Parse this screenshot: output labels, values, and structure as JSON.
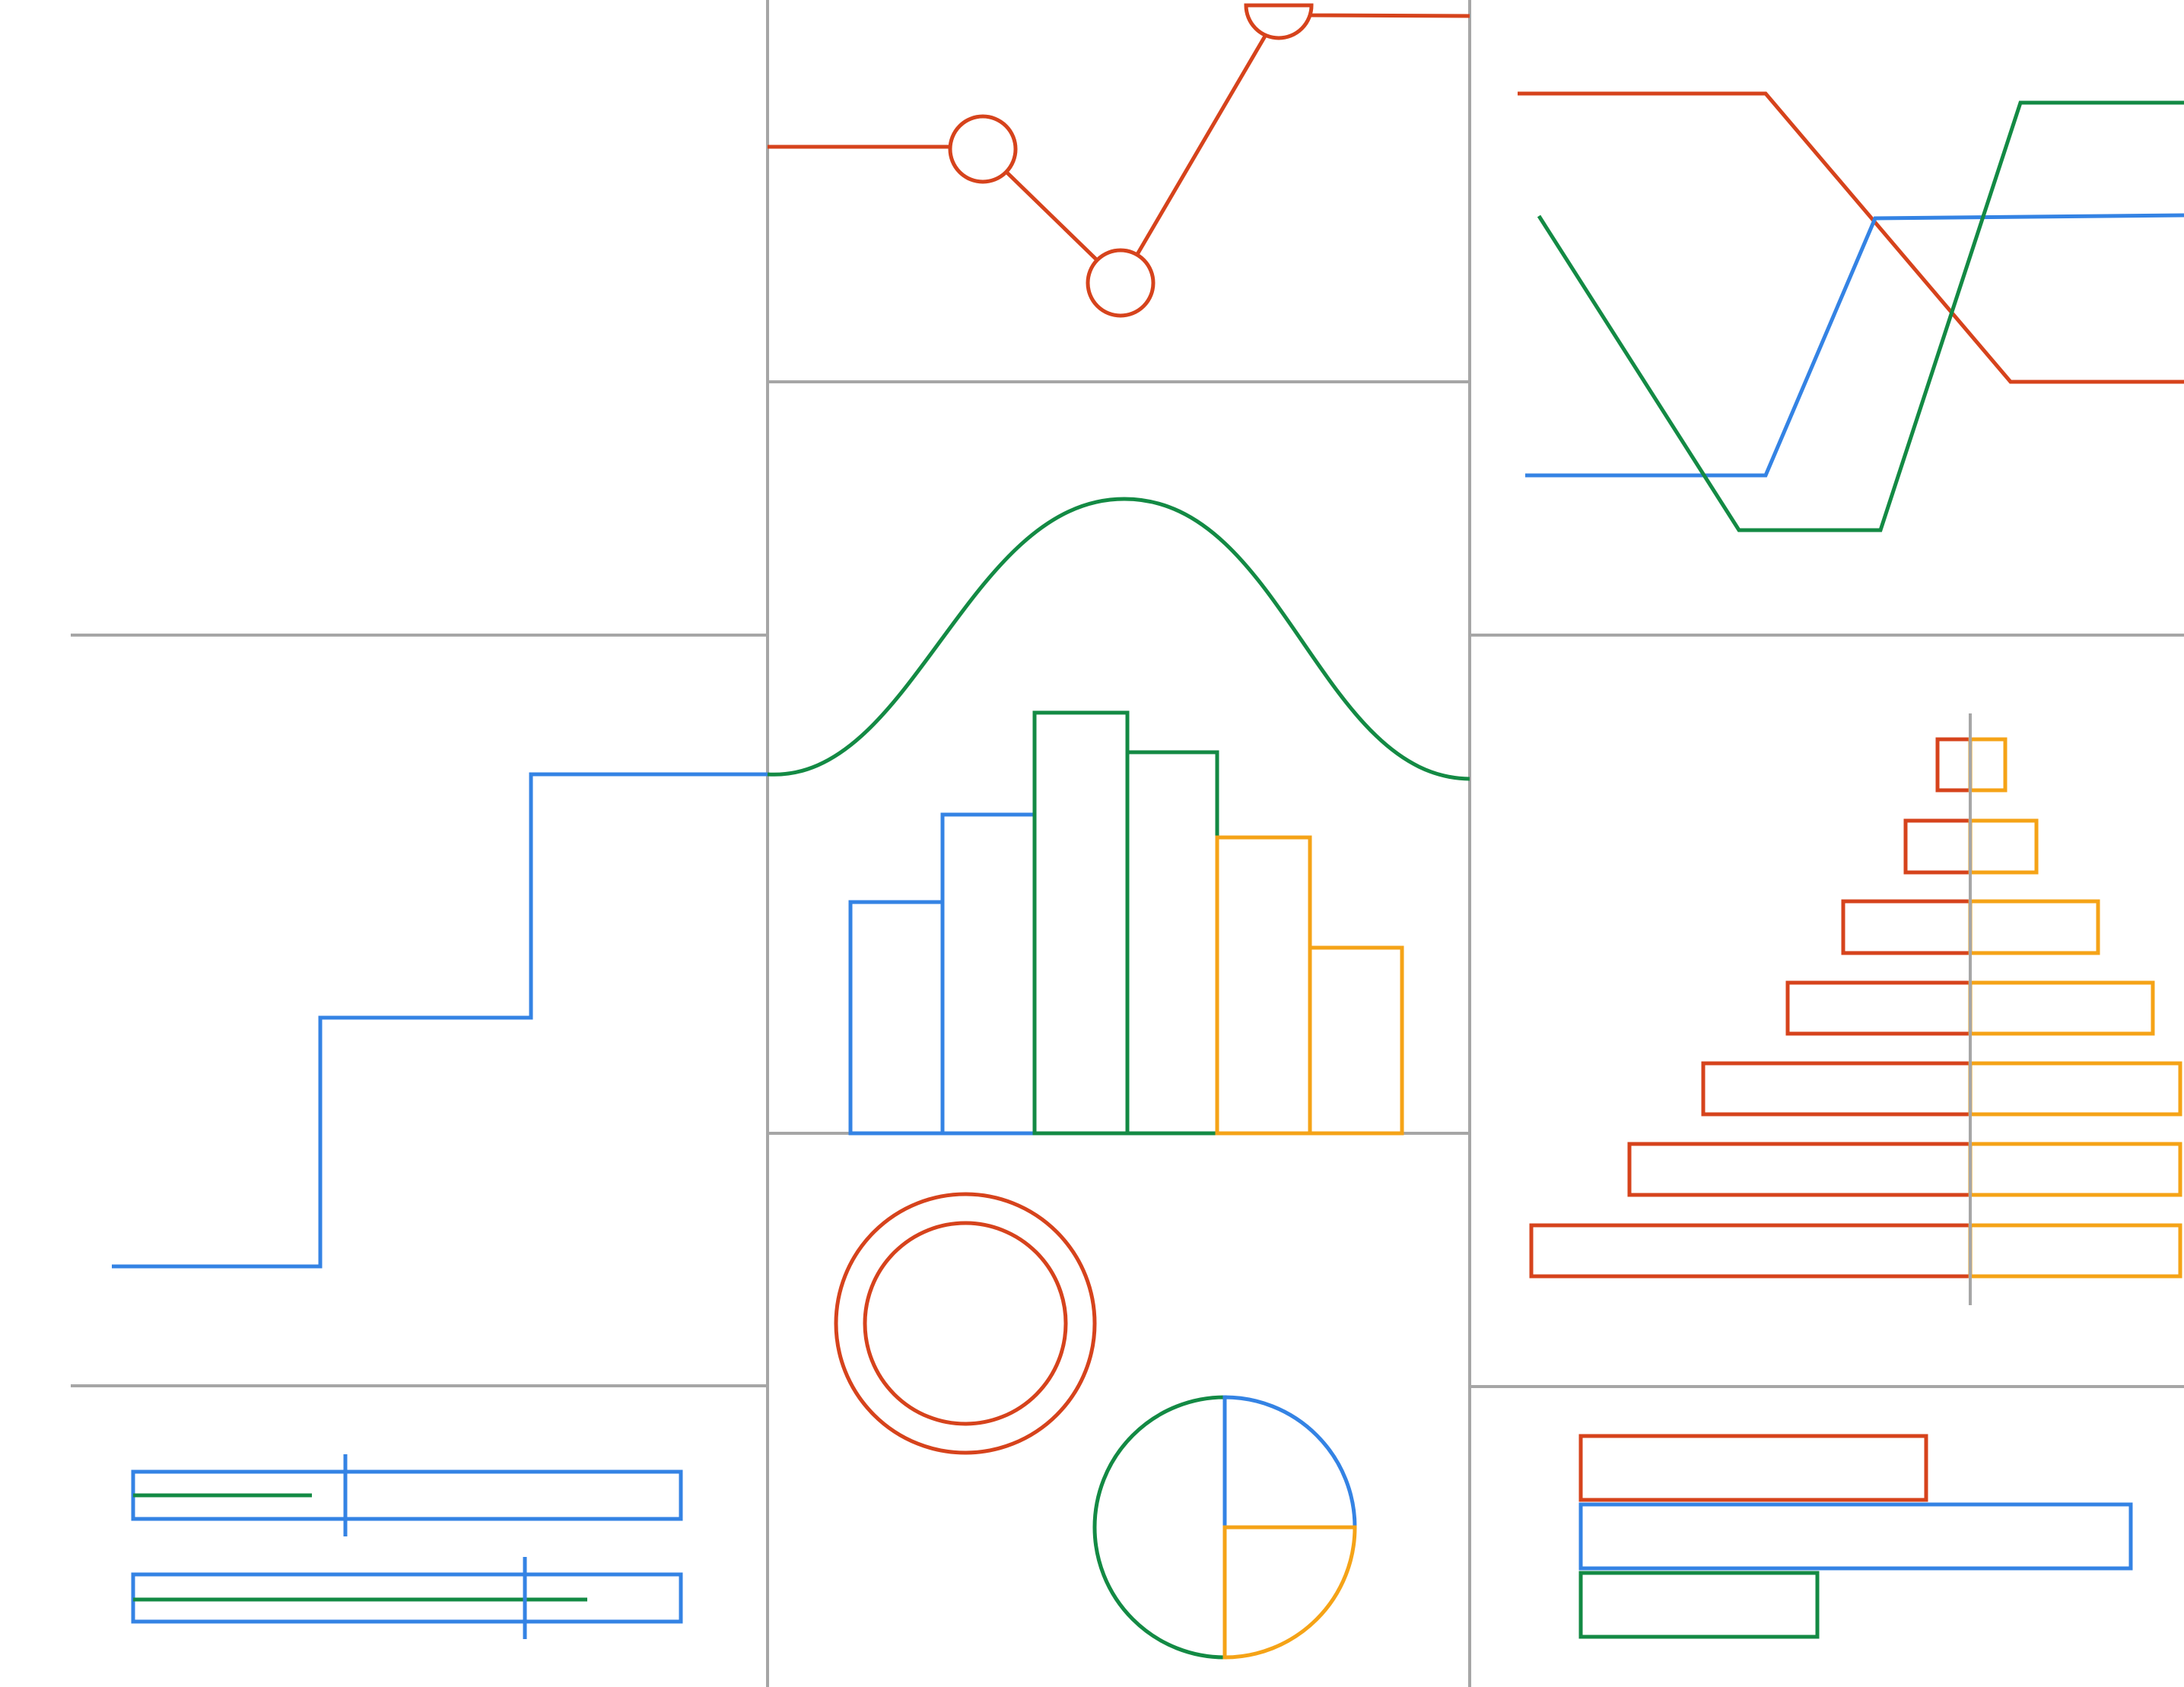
{
  "colors": {
    "red": "#d6431c",
    "blue": "#3483e4",
    "green": "#138a44",
    "orange": "#f5a317",
    "grid": "#a6a6a6",
    "background": "#ffffff"
  },
  "icons": [
    "line-chart-with-markers-icon",
    "bump-chart-icon",
    "step-line-chart-icon",
    "distribution-curve-with-histogram-icon",
    "population-pyramid-icon",
    "bullet-chart-icon",
    "donut-chart-icon",
    "pie-chart-icon",
    "horizontal-bar-chart-icon"
  ]
}
